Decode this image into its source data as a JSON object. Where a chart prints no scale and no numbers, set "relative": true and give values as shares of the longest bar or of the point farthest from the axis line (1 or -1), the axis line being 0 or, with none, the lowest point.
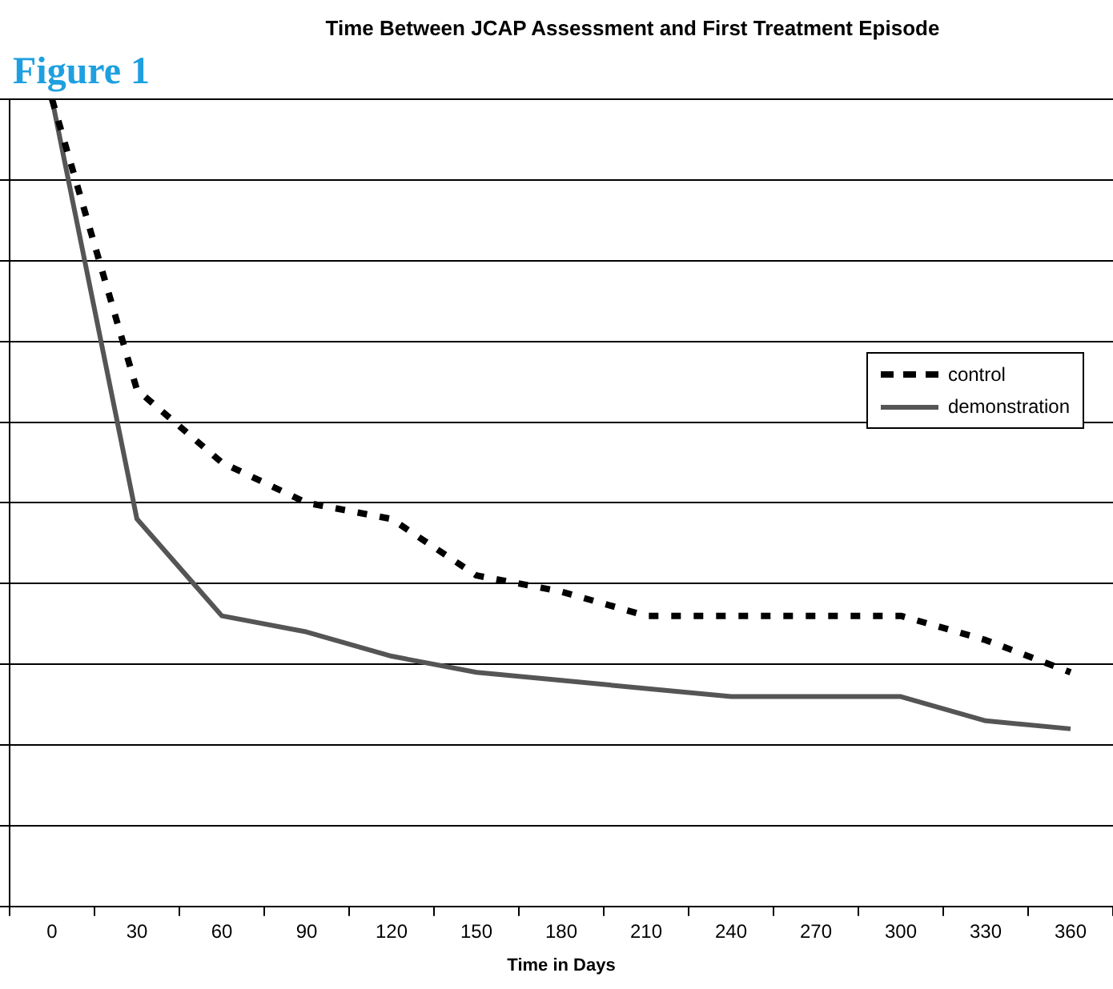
{
  "chart_data": {
    "type": "line",
    "title": "Time Between JCAP Assessment and First Treatment Episode",
    "xlabel": "Time in Days",
    "annotations": [
      "Figure 1"
    ],
    "categories": [
      "0",
      "30",
      "60",
      "90",
      "120",
      "150",
      "180",
      "210",
      "240",
      "270",
      "300",
      "330",
      "360"
    ],
    "relative": true,
    "grid": "y",
    "legend": "right",
    "marker": "none",
    "series": [
      {
        "name": "control",
        "color": "#000000",
        "line_style": "dotted",
        "values": [
          1.0,
          0.64,
          0.55,
          0.5,
          0.48,
          0.41,
          0.39,
          0.36,
          0.36,
          0.36,
          0.36,
          0.33,
          0.29
        ]
      },
      {
        "name": "demonstration",
        "color": "#555555",
        "line_style": "solid",
        "values": [
          1.0,
          0.48,
          0.36,
          0.34,
          0.31,
          0.29,
          0.28,
          0.27,
          0.26,
          0.26,
          0.26,
          0.23,
          0.22
        ]
      }
    ]
  }
}
